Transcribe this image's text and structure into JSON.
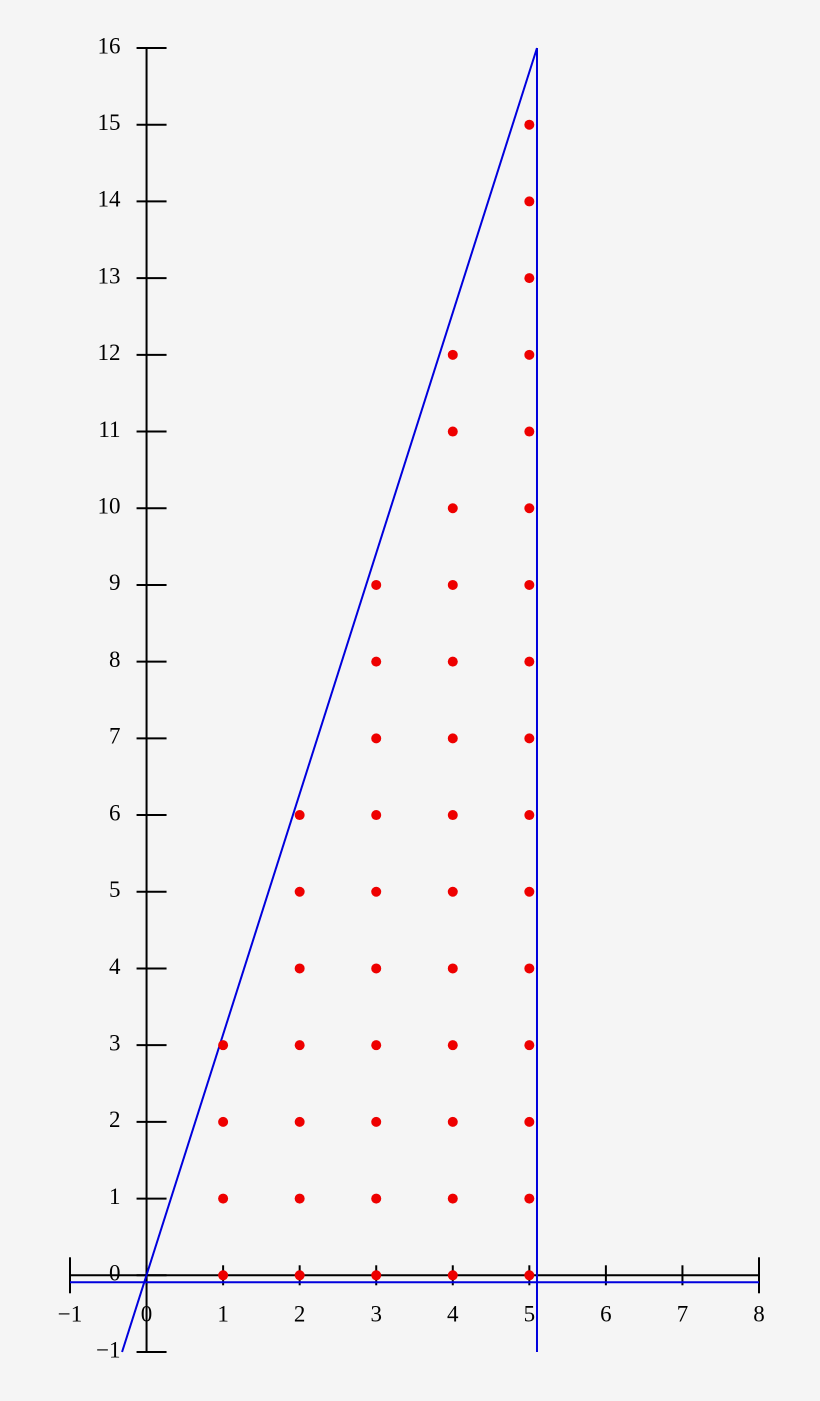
{
  "chart_data": {
    "type": "scatter",
    "xlim": [
      -1,
      8
    ],
    "ylim": [
      -1,
      16
    ],
    "xticks": [
      {
        "value": -1,
        "label": "−1"
      },
      0,
      1,
      2,
      3,
      4,
      5,
      6,
      7,
      8
    ],
    "yticks": [
      {
        "value": -1,
        "label": "−1"
      },
      0,
      1,
      2,
      3,
      4,
      5,
      6,
      7,
      8,
      9,
      10,
      11,
      12,
      13,
      14,
      15,
      16
    ],
    "series": [
      {
        "color": "#ee0000",
        "x": [
          1,
          1,
          1,
          1,
          2,
          2,
          2,
          2,
          2,
          2,
          2,
          3,
          3,
          3,
          3,
          3,
          3,
          3,
          3,
          3,
          3,
          4,
          4,
          4,
          4,
          4,
          4,
          4,
          4,
          4,
          4,
          4,
          4,
          4,
          5,
          5,
          5,
          5,
          5,
          5,
          5,
          5,
          5,
          5,
          5,
          5,
          5,
          5,
          5,
          5
        ],
        "values": [
          0,
          1,
          2,
          3,
          0,
          1,
          2,
          3,
          4,
          5,
          6,
          0,
          1,
          2,
          3,
          4,
          5,
          6,
          7,
          8,
          9,
          0,
          1,
          2,
          3,
          4,
          5,
          6,
          7,
          8,
          9,
          10,
          11,
          12,
          0,
          1,
          2,
          3,
          4,
          5,
          6,
          7,
          8,
          9,
          10,
          11,
          12,
          13,
          14,
          15
        ]
      }
    ],
    "lines": [
      {
        "color": "#0000dd",
        "x": [
          -0.32,
          5.1
        ],
        "values": [
          -1,
          16
        ]
      },
      {
        "color": "#0000dd",
        "x": [
          5.1,
          5.1
        ],
        "values": [
          -1,
          16
        ]
      },
      {
        "color": "#0000dd",
        "x": [
          -1,
          8
        ],
        "values": [
          -0.09,
          -0.09
        ]
      }
    ]
  }
}
